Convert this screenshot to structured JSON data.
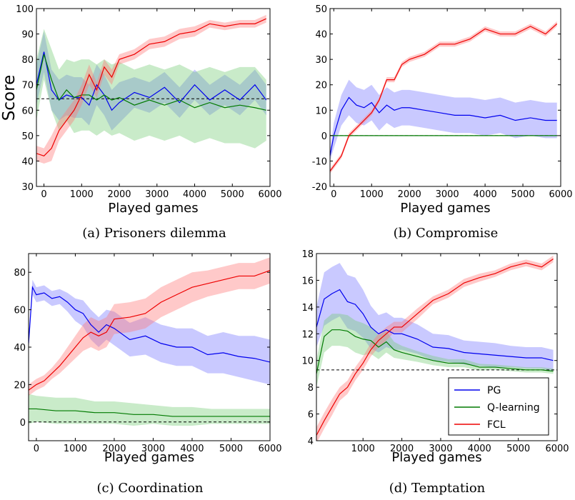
{
  "colors": {
    "PG": "#0000ee",
    "Q-learning": "#007a00",
    "FCL": "#ee0000",
    "PG_band": "#7777ff",
    "Q-learning_band": "#77cc77",
    "FCL_band": "#ff7777",
    "baseline": "#000000"
  },
  "legend": {
    "entries": [
      "PG",
      "Q-learning",
      "FCL"
    ],
    "placement": "bottom-right of panel (d)"
  },
  "chart_data": [
    {
      "type": "line",
      "caption": "(a) Prisoners dilemma",
      "xlabel": "Played games",
      "ylabel": "Score",
      "xlim": [
        -200,
        6000
      ],
      "ylim": [
        30,
        100
      ],
      "xticks": [
        0,
        1000,
        2000,
        3000,
        4000,
        5000,
        6000
      ],
      "yticks": [
        30,
        40,
        50,
        60,
        70,
        80,
        90,
        100
      ],
      "grid": false,
      "baseline": 64.5,
      "series": [
        {
          "name": "PG",
          "x": [
            -200,
            0,
            200,
            400,
            600,
            800,
            1000,
            1200,
            1400,
            1600,
            1800,
            2000,
            2400,
            2800,
            3200,
            3600,
            4000,
            4400,
            4800,
            5200,
            5600,
            5900
          ],
          "y": [
            70,
            83,
            68,
            64,
            66,
            65,
            65,
            62,
            70,
            66,
            60,
            63,
            67,
            65,
            69,
            63,
            70,
            64,
            68,
            64,
            70,
            64
          ],
          "band": [
            8,
            8,
            8,
            8,
            8,
            8,
            8,
            8,
            8,
            8,
            8,
            8,
            6,
            6,
            6,
            6,
            6,
            6,
            6,
            6,
            6,
            6
          ]
        },
        {
          "name": "Q-learning",
          "x": [
            -200,
            0,
            200,
            400,
            600,
            800,
            1000,
            1200,
            1400,
            1600,
            1800,
            2000,
            2400,
            2800,
            3200,
            3600,
            4000,
            4400,
            4800,
            5200,
            5600,
            5900
          ],
          "y": [
            68,
            82,
            72,
            64,
            68,
            65,
            66,
            66,
            64,
            66,
            64,
            65,
            62,
            64,
            62,
            64,
            61,
            63,
            61,
            62,
            61,
            60
          ],
          "band": [
            12,
            10,
            12,
            12,
            12,
            14,
            14,
            14,
            14,
            14,
            14,
            14,
            14,
            14,
            14,
            14,
            14,
            14,
            14,
            15,
            16,
            12
          ]
        },
        {
          "name": "FCL",
          "x": [
            -200,
            0,
            200,
            400,
            600,
            800,
            1000,
            1200,
            1400,
            1600,
            1800,
            2000,
            2400,
            2800,
            3200,
            3600,
            4000,
            4400,
            4800,
            5200,
            5600,
            5900
          ],
          "y": [
            43,
            42,
            45,
            52,
            56,
            60,
            66,
            74,
            68,
            77,
            73,
            80,
            82,
            86,
            87,
            90,
            91,
            94,
            93,
            94,
            94,
            96
          ],
          "band": [
            3,
            3,
            5,
            4,
            4,
            4,
            4,
            4,
            3,
            3,
            3,
            2,
            2,
            2,
            2,
            2,
            2,
            1.5,
            1.5,
            1.5,
            1.5,
            1.5
          ]
        }
      ]
    },
    {
      "type": "line",
      "caption": "(b) Compromise",
      "xlabel": "Played games",
      "ylabel": "",
      "xlim": [
        -100,
        6000
      ],
      "ylim": [
        -20,
        50
      ],
      "xticks": [
        0,
        1000,
        2000,
        3000,
        4000,
        5000,
        6000
      ],
      "yticks": [
        -20,
        -10,
        0,
        10,
        20,
        30,
        40,
        50
      ],
      "grid": false,
      "baseline": 0,
      "series": [
        {
          "name": "PG",
          "x": [
            -100,
            0,
            200,
            400,
            600,
            800,
            1000,
            1200,
            1400,
            1600,
            1800,
            2000,
            2400,
            2800,
            3200,
            3600,
            4000,
            4400,
            4800,
            5200,
            5600,
            5900
          ],
          "y": [
            -8,
            0,
            10,
            15,
            12,
            11,
            13,
            9,
            12,
            10,
            11,
            11,
            10,
            9,
            8,
            8,
            7,
            8,
            6,
            7,
            6,
            6
          ],
          "band": [
            2,
            5,
            6,
            7,
            7,
            7,
            7,
            7,
            7,
            7,
            7,
            7,
            7,
            7,
            7,
            7,
            7,
            7,
            7,
            7,
            7,
            7
          ]
        },
        {
          "name": "Q-learning",
          "x": [
            -100,
            0,
            500,
            1000,
            2000,
            3000,
            4000,
            5000,
            5900
          ],
          "y": [
            0,
            0,
            0,
            0,
            0,
            0,
            0,
            0,
            0
          ],
          "band": [
            0,
            0,
            0,
            0,
            0,
            0,
            0,
            0,
            0
          ]
        },
        {
          "name": "FCL",
          "x": [
            -100,
            0,
            200,
            400,
            600,
            800,
            1000,
            1200,
            1400,
            1600,
            1800,
            2000,
            2400,
            2800,
            3200,
            3600,
            4000,
            4400,
            4800,
            5200,
            5600,
            5900
          ],
          "y": [
            -14,
            -12,
            -8,
            0,
            3,
            6,
            9,
            14,
            22,
            22,
            28,
            30,
            32,
            36,
            36,
            38,
            42,
            40,
            40,
            43,
            40,
            44
          ],
          "band": [
            1,
            1,
            1,
            1,
            1,
            1,
            1,
            1,
            1,
            1,
            1,
            1,
            1,
            1,
            1,
            1,
            1,
            1,
            1,
            1,
            1,
            1
          ]
        }
      ]
    },
    {
      "type": "line",
      "caption": "(c) Coordination",
      "xlabel": "Played games",
      "ylabel": "",
      "xlim": [
        -200,
        6000
      ],
      "ylim": [
        -10,
        90
      ],
      "xticks": [
        0,
        1000,
        2000,
        3000,
        4000,
        5000,
        6000
      ],
      "yticks": [
        0,
        20,
        40,
        60,
        80
      ],
      "grid": false,
      "baseline": 0,
      "series": [
        {
          "name": "PG",
          "x": [
            -200,
            -100,
            0,
            200,
            400,
            600,
            800,
            1000,
            1200,
            1400,
            1600,
            1800,
            2000,
            2400,
            2800,
            3200,
            3600,
            4000,
            4400,
            4800,
            5200,
            5600,
            6000
          ],
          "y": [
            42,
            72,
            68,
            69,
            66,
            67,
            64,
            60,
            58,
            52,
            48,
            52,
            50,
            44,
            46,
            42,
            40,
            40,
            36,
            37,
            35,
            34,
            32
          ],
          "band": [
            4,
            4,
            4,
            4,
            4,
            4,
            5,
            6,
            7,
            8,
            8,
            8,
            9,
            9,
            10,
            10,
            10,
            10,
            10,
            11,
            11,
            12,
            12
          ]
        },
        {
          "name": "Q-learning",
          "x": [
            -200,
            0,
            500,
            1000,
            1500,
            2000,
            2500,
            3000,
            3500,
            4000,
            4500,
            5000,
            5500,
            6000
          ],
          "y": [
            7,
            7,
            6,
            6,
            5,
            5,
            4,
            4,
            3,
            3,
            3,
            3,
            3,
            3
          ],
          "band": [
            8,
            7,
            7,
            7,
            6,
            6,
            6,
            5,
            5,
            5,
            4,
            4,
            4,
            4
          ]
        },
        {
          "name": "FCL",
          "x": [
            -200,
            0,
            200,
            400,
            600,
            800,
            1000,
            1200,
            1400,
            1600,
            1800,
            2000,
            2400,
            2800,
            3200,
            3600,
            4000,
            4400,
            4800,
            5200,
            5600,
            6000
          ],
          "y": [
            17,
            20,
            22,
            26,
            30,
            35,
            40,
            45,
            48,
            46,
            48,
            55,
            56,
            58,
            64,
            68,
            72,
            74,
            76,
            78,
            78,
            81
          ],
          "band": [
            3,
            3,
            3,
            3,
            4,
            5,
            6,
            7,
            8,
            8,
            8,
            8,
            8,
            8,
            8,
            8,
            8,
            7,
            7,
            7,
            7,
            7
          ]
        }
      ]
    },
    {
      "type": "line",
      "caption": "(d) Temptation",
      "xlabel": "Played games",
      "ylabel": "",
      "xlim": [
        -200,
        6000
      ],
      "ylim": [
        4,
        18
      ],
      "xticks": [
        1000,
        2000,
        3000,
        4000,
        5000,
        6000
      ],
      "yticks": [
        4,
        6,
        8,
        10,
        12,
        14,
        16,
        18
      ],
      "grid": false,
      "baseline": 9.3,
      "series": [
        {
          "name": "PG",
          "x": [
            -200,
            0,
            200,
            400,
            600,
            800,
            1000,
            1200,
            1400,
            1600,
            1800,
            2000,
            2400,
            2800,
            3200,
            3600,
            4000,
            4400,
            4800,
            5200,
            5600,
            5900
          ],
          "y": [
            12.5,
            14.6,
            15.0,
            15.3,
            14.4,
            14.2,
            13.5,
            12.5,
            12.0,
            12.3,
            12.0,
            12.0,
            11.6,
            11.0,
            10.9,
            10.6,
            10.5,
            10.4,
            10.3,
            10.2,
            10.2,
            10.0
          ],
          "band": [
            1.5,
            2.0,
            2.0,
            2.0,
            2.0,
            2.0,
            1.8,
            1.6,
            1.4,
            1.3,
            1.2,
            1.2,
            1.1,
            1.0,
            1.0,
            0.9,
            0.9,
            0.9,
            0.8,
            0.8,
            0.8,
            0.8
          ]
        },
        {
          "name": "Q-learning",
          "x": [
            -200,
            0,
            200,
            400,
            600,
            800,
            1000,
            1200,
            1400,
            1600,
            1800,
            2000,
            2400,
            2800,
            3200,
            3600,
            4000,
            4400,
            4800,
            5200,
            5600,
            5900
          ],
          "y": [
            9.0,
            11.8,
            12.3,
            12.3,
            12.2,
            11.8,
            11.6,
            11.5,
            11.0,
            11.4,
            10.8,
            10.6,
            10.3,
            10.0,
            9.8,
            9.8,
            9.5,
            9.5,
            9.4,
            9.3,
            9.3,
            9.2
          ],
          "band": [
            1.0,
            1.2,
            1.2,
            1.2,
            1.2,
            1.2,
            1.2,
            1.0,
            0.9,
            0.8,
            0.6,
            0.5,
            0.4,
            0.35,
            0.3,
            0.3,
            0.25,
            0.2,
            0.2,
            0.2,
            0.2,
            0.2
          ]
        },
        {
          "name": "FCL",
          "x": [
            -200,
            0,
            200,
            400,
            600,
            800,
            1000,
            1200,
            1400,
            1600,
            1800,
            2000,
            2400,
            2800,
            3200,
            3600,
            4000,
            4400,
            4800,
            5200,
            5600,
            5900
          ],
          "y": [
            4.4,
            5.5,
            6.5,
            7.5,
            8.0,
            9.0,
            9.8,
            10.8,
            11.5,
            12.0,
            12.5,
            12.5,
            13.5,
            14.5,
            15.0,
            15.8,
            16.2,
            16.5,
            17.0,
            17.3,
            17.0,
            17.6
          ],
          "band": [
            0.6,
            0.6,
            0.6,
            0.5,
            0.5,
            0.5,
            0.5,
            0.5,
            0.5,
            0.5,
            0.4,
            0.4,
            0.4,
            0.3,
            0.3,
            0.3,
            0.3,
            0.25,
            0.25,
            0.25,
            0.25,
            0.25
          ]
        }
      ]
    }
  ]
}
